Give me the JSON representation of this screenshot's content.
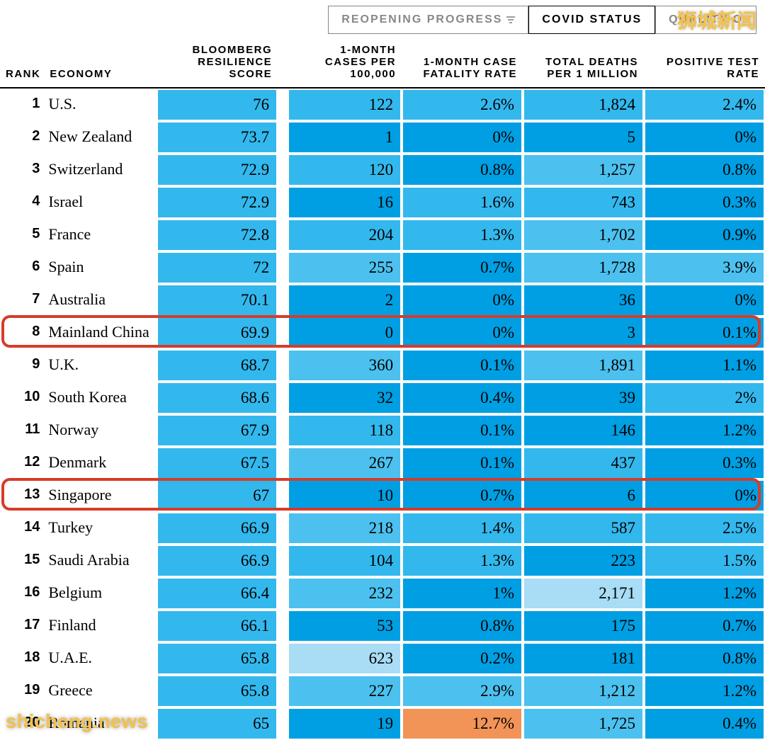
{
  "tabs": [
    {
      "label": "REOPENING PROGRESS",
      "active": false,
      "has_filter": true
    },
    {
      "label": "COVID STATUS",
      "active": true,
      "has_filter": false
    },
    {
      "label": "QUALITY O",
      "active": false,
      "has_filter": false
    }
  ],
  "tab_text_color_inactive": "#9e9e9e",
  "tab_text_color_active": "#000000",
  "headers": {
    "rank": "RANK",
    "economy": "ECONOMY",
    "score": "BLOOMBERG\nRESILIENCE\nSCORE",
    "cases": "1-MONTH\nCASES PER\n100,000",
    "fatality": "1-MONTH CASE\nFATALITY RATE",
    "deaths": "TOTAL DEATHS\nPER 1 MILLION",
    "positive": "POSITIVE TEST\nRATE"
  },
  "header_fontsize": 15,
  "cell_fontsize": 23,
  "rank_fontsize": 20,
  "economy_fontsize": 22,
  "font_numeric": "Georgia, serif",
  "font_header": "Arial, Helvetica, sans-serif",
  "highlight_border_color": "#d63c2a",
  "highlight_border_radius": 12,
  "highlight_border_width": 4,
  "watermark_tr": "狮城新闻",
  "watermark_bl": "shicheng.news",
  "watermark_color": "#f3c14b",
  "color_scale": {
    "type": "diverging",
    "light_end": "#a9dcf5",
    "mid": "#33b8ed",
    "strong": "#009fe3",
    "orange": "#f29457"
  },
  "background_color": "#ffffff",
  "rows": [
    {
      "rank": "1",
      "economy": "U.S.",
      "score": "76",
      "cases": "122",
      "fatality": "2.6%",
      "deaths": "1,824",
      "positive": "2.4%",
      "bg": {
        "score": "#33b8ed",
        "cases": "#33b8ed",
        "fatality": "#33b8ed",
        "deaths": "#33b8ed",
        "positive": "#33b8ed"
      }
    },
    {
      "rank": "2",
      "economy": "New Zealand",
      "score": "73.7",
      "cases": "1",
      "fatality": "0%",
      "deaths": "5",
      "positive": "0%",
      "bg": {
        "score": "#33b8ed",
        "cases": "#009fe3",
        "fatality": "#009fe3",
        "deaths": "#009fe3",
        "positive": "#009fe3"
      }
    },
    {
      "rank": "3",
      "economy": "Switzerland",
      "score": "72.9",
      "cases": "120",
      "fatality": "0.8%",
      "deaths": "1,257",
      "positive": "0.8%",
      "bg": {
        "score": "#33b8ed",
        "cases": "#33b8ed",
        "fatality": "#009fe3",
        "deaths": "#4cc1ef",
        "positive": "#009fe3"
      }
    },
    {
      "rank": "4",
      "economy": "Israel",
      "score": "72.9",
      "cases": "16",
      "fatality": "1.6%",
      "deaths": "743",
      "positive": "0.3%",
      "bg": {
        "score": "#33b8ed",
        "cases": "#009fe3",
        "fatality": "#33b8ed",
        "deaths": "#33b8ed",
        "positive": "#009fe3"
      }
    },
    {
      "rank": "5",
      "economy": "France",
      "score": "72.8",
      "cases": "204",
      "fatality": "1.3%",
      "deaths": "1,702",
      "positive": "0.9%",
      "bg": {
        "score": "#33b8ed",
        "cases": "#33b8ed",
        "fatality": "#33b8ed",
        "deaths": "#4cc1ef",
        "positive": "#009fe3"
      }
    },
    {
      "rank": "6",
      "economy": "Spain",
      "score": "72",
      "cases": "255",
      "fatality": "0.7%",
      "deaths": "1,728",
      "positive": "3.9%",
      "bg": {
        "score": "#33b8ed",
        "cases": "#4cc1ef",
        "fatality": "#009fe3",
        "deaths": "#4cc1ef",
        "positive": "#4cc1ef"
      }
    },
    {
      "rank": "7",
      "economy": "Australia",
      "score": "70.1",
      "cases": "2",
      "fatality": "0%",
      "deaths": "36",
      "positive": "0%",
      "bg": {
        "score": "#33b8ed",
        "cases": "#009fe3",
        "fatality": "#009fe3",
        "deaths": "#009fe3",
        "positive": "#009fe3"
      }
    },
    {
      "rank": "8",
      "economy": "Mainland China",
      "score": "69.9",
      "cases": "0",
      "fatality": "0%",
      "deaths": "3",
      "positive": "0.1%",
      "bg": {
        "score": "#33b8ed",
        "cases": "#009fe3",
        "fatality": "#009fe3",
        "deaths": "#009fe3",
        "positive": "#009fe3"
      },
      "highlight": true
    },
    {
      "rank": "9",
      "economy": "U.K.",
      "score": "68.7",
      "cases": "360",
      "fatality": "0.1%",
      "deaths": "1,891",
      "positive": "1.1%",
      "bg": {
        "score": "#33b8ed",
        "cases": "#4cc1ef",
        "fatality": "#009fe3",
        "deaths": "#4cc1ef",
        "positive": "#009fe3"
      }
    },
    {
      "rank": "10",
      "economy": "South Korea",
      "score": "68.6",
      "cases": "32",
      "fatality": "0.4%",
      "deaths": "39",
      "positive": "2%",
      "bg": {
        "score": "#33b8ed",
        "cases": "#009fe3",
        "fatality": "#009fe3",
        "deaths": "#009fe3",
        "positive": "#33b8ed"
      }
    },
    {
      "rank": "11",
      "economy": "Norway",
      "score": "67.9",
      "cases": "118",
      "fatality": "0.1%",
      "deaths": "146",
      "positive": "1.2%",
      "bg": {
        "score": "#33b8ed",
        "cases": "#33b8ed",
        "fatality": "#009fe3",
        "deaths": "#009fe3",
        "positive": "#009fe3"
      }
    },
    {
      "rank": "12",
      "economy": "Denmark",
      "score": "67.5",
      "cases": "267",
      "fatality": "0.1%",
      "deaths": "437",
      "positive": "0.3%",
      "bg": {
        "score": "#33b8ed",
        "cases": "#4cc1ef",
        "fatality": "#009fe3",
        "deaths": "#33b8ed",
        "positive": "#009fe3"
      }
    },
    {
      "rank": "13",
      "economy": "Singapore",
      "score": "67",
      "cases": "10",
      "fatality": "0.7%",
      "deaths": "6",
      "positive": "0%",
      "bg": {
        "score": "#33b8ed",
        "cases": "#009fe3",
        "fatality": "#009fe3",
        "deaths": "#009fe3",
        "positive": "#009fe3"
      },
      "highlight": true
    },
    {
      "rank": "14",
      "economy": "Turkey",
      "score": "66.9",
      "cases": "218",
      "fatality": "1.4%",
      "deaths": "587",
      "positive": "2.5%",
      "bg": {
        "score": "#33b8ed",
        "cases": "#4cc1ef",
        "fatality": "#33b8ed",
        "deaths": "#33b8ed",
        "positive": "#33b8ed"
      }
    },
    {
      "rank": "15",
      "economy": "Saudi Arabia",
      "score": "66.9",
      "cases": "104",
      "fatality": "1.3%",
      "deaths": "223",
      "positive": "1.5%",
      "bg": {
        "score": "#33b8ed",
        "cases": "#33b8ed",
        "fatality": "#33b8ed",
        "deaths": "#009fe3",
        "positive": "#33b8ed"
      }
    },
    {
      "rank": "16",
      "economy": "Belgium",
      "score": "66.4",
      "cases": "232",
      "fatality": "1%",
      "deaths": "2,171",
      "positive": "1.2%",
      "bg": {
        "score": "#33b8ed",
        "cases": "#4cc1ef",
        "fatality": "#009fe3",
        "deaths": "#a9dcf5",
        "positive": "#009fe3"
      }
    },
    {
      "rank": "17",
      "economy": "Finland",
      "score": "66.1",
      "cases": "53",
      "fatality": "0.8%",
      "deaths": "175",
      "positive": "0.7%",
      "bg": {
        "score": "#33b8ed",
        "cases": "#009fe3",
        "fatality": "#009fe3",
        "deaths": "#009fe3",
        "positive": "#009fe3"
      }
    },
    {
      "rank": "18",
      "economy": "U.A.E.",
      "score": "65.8",
      "cases": "623",
      "fatality": "0.2%",
      "deaths": "181",
      "positive": "0.8%",
      "bg": {
        "score": "#33b8ed",
        "cases": "#a9dcf5",
        "fatality": "#009fe3",
        "deaths": "#009fe3",
        "positive": "#009fe3"
      }
    },
    {
      "rank": "19",
      "economy": "Greece",
      "score": "65.8",
      "cases": "227",
      "fatality": "2.9%",
      "deaths": "1,212",
      "positive": "1.2%",
      "bg": {
        "score": "#33b8ed",
        "cases": "#4cc1ef",
        "fatality": "#4cc1ef",
        "deaths": "#4cc1ef",
        "positive": "#009fe3"
      }
    },
    {
      "rank": "20",
      "economy": "Romania",
      "score": "65",
      "cases": "19",
      "fatality": "12.7%",
      "deaths": "1,725",
      "positive": "0.4%",
      "bg": {
        "score": "#33b8ed",
        "cases": "#009fe3",
        "fatality": "#f29457",
        "deaths": "#4cc1ef",
        "positive": "#009fe3"
      }
    }
  ]
}
